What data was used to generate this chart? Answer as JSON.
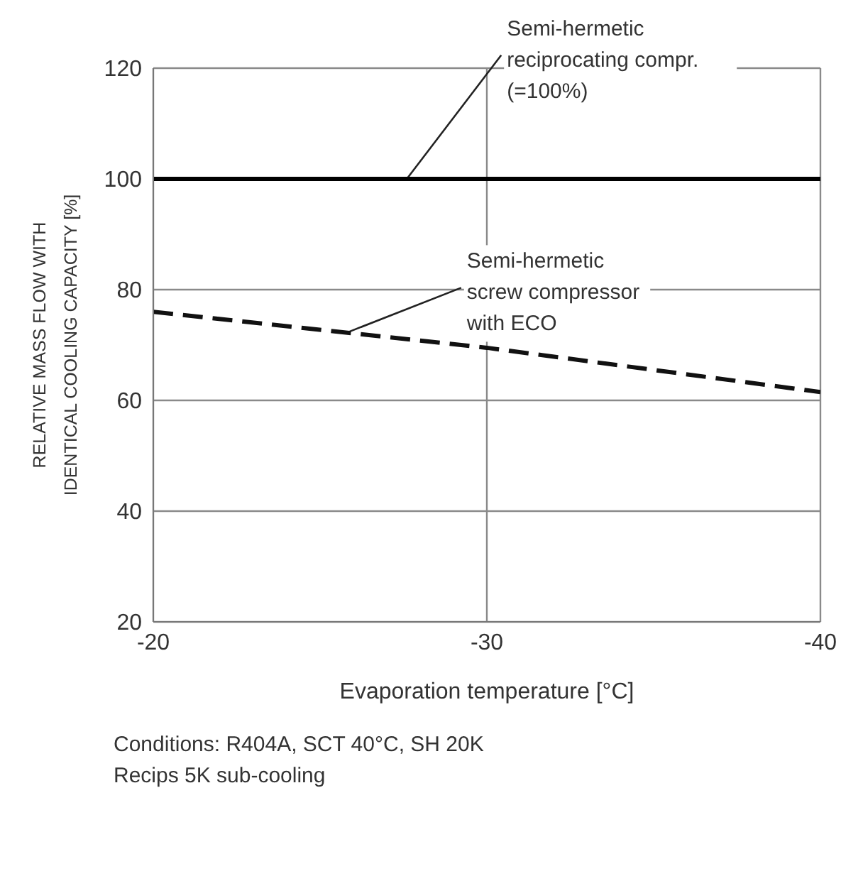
{
  "chart_data": {
    "type": "line",
    "xlabel": "Evaporation temperature [°C]",
    "ylabel": "RELATIVE MASS FLOW WITH\nIDENTICAL COOLING CAPACITY [%]",
    "series": [
      {
        "name": "Semi-hermetic\nreciprocating compr.\n(=100%)",
        "color": "#000000",
        "line_style": "solid",
        "x": [
          -20,
          -30,
          -40
        ],
        "values": [
          100,
          100,
          100
        ]
      },
      {
        "name": "Semi-hermetic\nscrew compressor\nwith ECO",
        "color": "#111111",
        "line_style": "dashed",
        "x": [
          -20,
          -30,
          -40
        ],
        "values": [
          76,
          69.5,
          61.5
        ]
      }
    ],
    "xlim": [
      -20,
      -40
    ],
    "xticks": [
      -20,
      -30,
      -40
    ],
    "ylim": [
      20,
      120
    ],
    "yticks": [
      20,
      40,
      60,
      80,
      100,
      120
    ],
    "grid": true,
    "legend": false,
    "marker": "none",
    "annotations": [
      "Conditions: R404A, SCT 40°C, SH 20K\nRecips 5K sub-cooling"
    ]
  }
}
